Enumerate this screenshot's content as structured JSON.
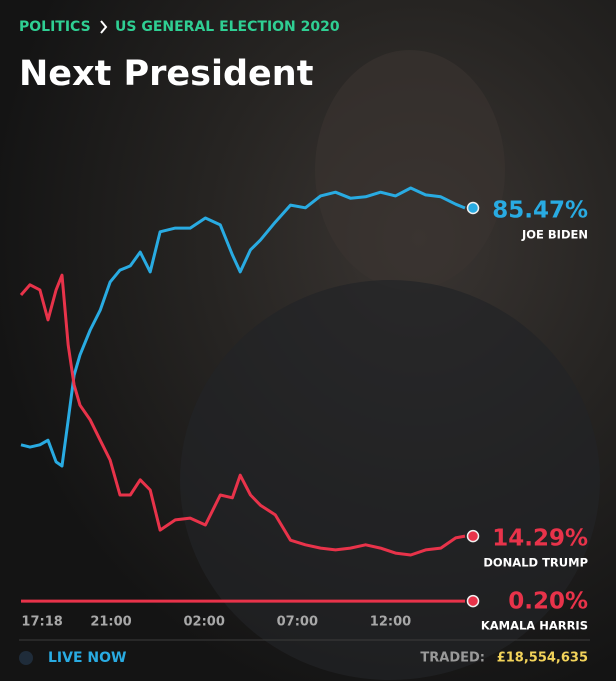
{
  "breadcrumb": [
    "POLITICS",
    "US GENERAL ELECTION 2020"
  ],
  "footer": {
    "status": "LIVE NOW",
    "traded_label": "TRADED:",
    "traded_amount": "£18,554,635"
  },
  "chart_data": {
    "type": "line",
    "title": "Next President",
    "x": [
      "16:10",
      "16:39",
      "17:11",
      "17:37",
      "18:03",
      "18:22",
      "18:42",
      "19:01",
      "19:20",
      "19:53",
      "20:25",
      "20:57",
      "21:29",
      "22:02",
      "22:34",
      "23:06",
      "23:38",
      "00:27",
      "01:15",
      "02:04",
      "02:52",
      "03:31",
      "03:56",
      "04:29",
      "05:01",
      "05:49",
      "06:38",
      "07:26",
      "08:15",
      "09:03",
      "09:51",
      "10:40",
      "11:28",
      "12:16",
      "13:05",
      "13:53",
      "14:42",
      "15:30",
      "16:00"
    ],
    "xlim": [
      "16:10",
      "16:00"
    ],
    "xticks": [
      "17:18",
      "21:00",
      "02:00",
      "07:00",
      "12:00"
    ],
    "ylim": [
      0,
      100
    ],
    "series": [
      {
        "name": "JOE BIDEN",
        "color": "#29abe2",
        "values": [
          34.1,
          33.6,
          34.1,
          35.1,
          30.4,
          29.5,
          39.5,
          49.2,
          53.6,
          59.0,
          63.3,
          69.4,
          72.0,
          72.9,
          75.9,
          71.6,
          80.3,
          81.1,
          81.1,
          83.3,
          81.8,
          75.3,
          71.6,
          76.4,
          78.5,
          82.4,
          86.1,
          85.5,
          88.1,
          88.9,
          87.6,
          87.9,
          88.9,
          88.1,
          89.8,
          88.3,
          87.9,
          86.3,
          85.47
        ],
        "value_labels": [
          null,
          null,
          null,
          null,
          null,
          null,
          null,
          null,
          null,
          null,
          null,
          null,
          null,
          null,
          null,
          null,
          null,
          null,
          null,
          null,
          null,
          null,
          null,
          null,
          null,
          null,
          null,
          null,
          null,
          null,
          null,
          null,
          null,
          null,
          null,
          null,
          null,
          null,
          "85.47%"
        ]
      },
      {
        "name": "DONALD TRUMP",
        "color": "#e8334a",
        "values": [
          66.6,
          68.8,
          67.7,
          61.2,
          67.7,
          70.9,
          55.7,
          47.1,
          42.7,
          39.5,
          35.1,
          30.8,
          23.2,
          23.2,
          26.5,
          24.3,
          15.6,
          17.8,
          18.2,
          16.7,
          23.2,
          22.6,
          27.5,
          23.2,
          21.0,
          18.9,
          13.4,
          12.4,
          11.7,
          11.3,
          11.7,
          12.4,
          11.7,
          10.6,
          10.2,
          11.3,
          11.7,
          13.9,
          14.29
        ],
        "value_labels": [
          null,
          null,
          null,
          null,
          null,
          null,
          null,
          null,
          null,
          null,
          null,
          null,
          null,
          null,
          null,
          null,
          null,
          null,
          null,
          null,
          null,
          null,
          null,
          null,
          null,
          null,
          null,
          null,
          null,
          null,
          null,
          null,
          null,
          null,
          null,
          null,
          null,
          null,
          "14.29%"
        ]
      },
      {
        "name": "KAMALA HARRIS",
        "color": "#e8334a",
        "values": [
          0.2,
          0.2,
          0.2,
          0.2,
          0.2,
          0.2,
          0.2,
          0.2,
          0.2,
          0.2,
          0.2,
          0.2,
          0.2,
          0.2,
          0.2,
          0.2,
          0.2,
          0.2,
          0.2,
          0.2,
          0.2,
          0.2,
          0.2,
          0.2,
          0.2,
          0.2,
          0.2,
          0.2,
          0.2,
          0.2,
          0.2,
          0.2,
          0.2,
          0.2,
          0.2,
          0.2,
          0.2,
          0.2,
          0.2
        ],
        "value_labels": [
          null,
          null,
          null,
          null,
          null,
          null,
          null,
          null,
          null,
          null,
          null,
          null,
          null,
          null,
          null,
          null,
          null,
          null,
          null,
          null,
          null,
          null,
          null,
          null,
          null,
          null,
          null,
          null,
          null,
          null,
          null,
          null,
          null,
          null,
          null,
          null,
          null,
          null,
          "0.20%"
        ]
      }
    ]
  }
}
